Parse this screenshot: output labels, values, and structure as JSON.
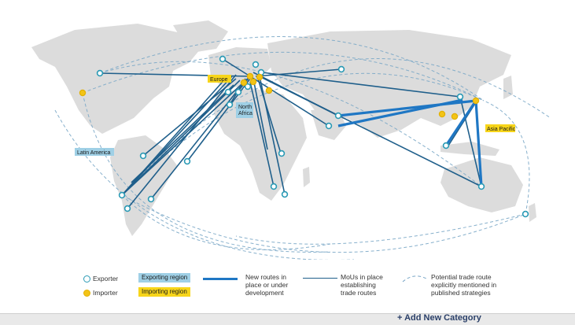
{
  "map": {
    "labels": {
      "europe": "Europe",
      "north_africa": "North\nAfrica",
      "latin_america": "Latin America",
      "asia_pacific": "Asia Pacific"
    },
    "colors": {
      "exporter": "#2a9ab5",
      "importer": "#f3c417",
      "new_route": "#1f77c4",
      "mou_route": "#1f5f8b",
      "potential_route": "#7aa7c7",
      "land": "#dcdcdc"
    }
  },
  "legend": {
    "exporter": "Exporter",
    "importer": "Importer",
    "exporting_region": "Exporting region",
    "importing_region": "Importing region",
    "new_routes": "New routes in\nplace or under\ndevelopment",
    "mou": "MoUs in place\nestablishing\ntrade routes",
    "potential": "Potential trade route\nexplicitly mentioned in\npublished strategies"
  },
  "footer": {
    "add_category": "+ Add New Category"
  }
}
